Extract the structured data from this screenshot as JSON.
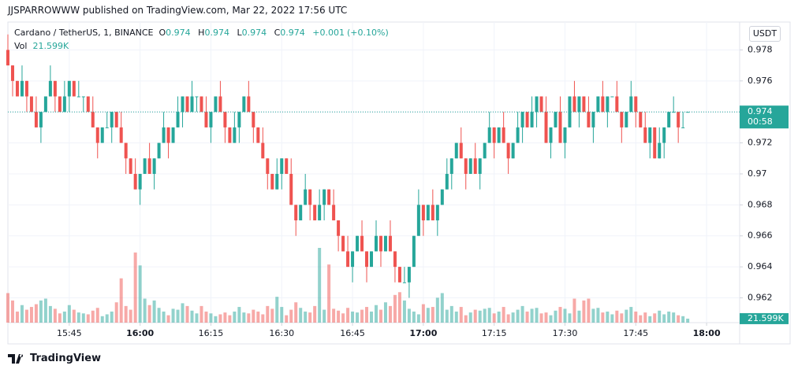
{
  "header": {
    "publisher": "JJSPARROWWW published on TradingView.com, Mar 22, 2022 17:56 UTC"
  },
  "chart_data": {
    "type": "candlestick",
    "symbol": "Cardano / TetherUS, 1, BINANCE",
    "currency": "USDT",
    "ohlc_labels": [
      "O",
      "H",
      "L",
      "C"
    ],
    "change": "+0.001",
    "change_pct": "(+0.10%)",
    "countdown": "00:58",
    "up_color": "#26a69a",
    "down_color": "#ef5350",
    "grid": true,
    "ylim": [
      0.9604,
      0.9798
    ],
    "yticks": [
      0.962,
      0.964,
      0.966,
      0.968,
      0.97,
      0.972,
      0.974,
      0.976,
      0.978
    ],
    "xlim": [
      "15:32",
      "18:07"
    ],
    "xticks": [
      "15:45",
      "16:00",
      "16:15",
      "16:30",
      "16:45",
      "17:00",
      "17:15",
      "17:30",
      "17:45",
      "18:00"
    ],
    "x": [
      "15:32",
      "15:33",
      "15:34",
      "15:35",
      "15:36",
      "15:37",
      "15:38",
      "15:39",
      "15:40",
      "15:41",
      "15:42",
      "15:43",
      "15:44",
      "15:45",
      "15:46",
      "15:47",
      "15:48",
      "15:49",
      "15:50",
      "15:51",
      "15:52",
      "15:53",
      "15:54",
      "15:55",
      "15:56",
      "15:57",
      "15:58",
      "15:59",
      "16:00",
      "16:01",
      "16:02",
      "16:03",
      "16:04",
      "16:05",
      "16:06",
      "16:07",
      "16:08",
      "16:09",
      "16:10",
      "16:11",
      "16:12",
      "16:13",
      "16:14",
      "16:15",
      "16:16",
      "16:17",
      "16:18",
      "16:19",
      "16:20",
      "16:21",
      "16:22",
      "16:23",
      "16:24",
      "16:25",
      "16:26",
      "16:27",
      "16:28",
      "16:29",
      "16:30",
      "16:31",
      "16:32",
      "16:33",
      "16:34",
      "16:35",
      "16:36",
      "16:37",
      "16:38",
      "16:39",
      "16:40",
      "16:41",
      "16:42",
      "16:43",
      "16:44",
      "16:45",
      "16:46",
      "16:47",
      "16:48",
      "16:49",
      "16:50",
      "16:51",
      "16:52",
      "16:53",
      "16:54",
      "16:55",
      "16:56",
      "16:57",
      "16:58",
      "16:59",
      "17:00",
      "17:01",
      "17:02",
      "17:03",
      "17:04",
      "17:05",
      "17:06",
      "17:07",
      "17:08",
      "17:09",
      "17:10",
      "17:11",
      "17:12",
      "17:13",
      "17:14",
      "17:15",
      "17:16",
      "17:17",
      "17:18",
      "17:19",
      "17:20",
      "17:21",
      "17:22",
      "17:23",
      "17:24",
      "17:25",
      "17:26",
      "17:27",
      "17:28",
      "17:29",
      "17:30",
      "17:31",
      "17:32",
      "17:33",
      "17:34",
      "17:35",
      "17:36",
      "17:37",
      "17:38",
      "17:39",
      "17:40",
      "17:41",
      "17:42",
      "17:43",
      "17:44",
      "17:45",
      "17:46",
      "17:47",
      "17:48",
      "17:49",
      "17:50",
      "17:51",
      "17:52",
      "17:53",
      "17:54",
      "17:55",
      "17:56"
    ],
    "open": [
      0.978,
      0.977,
      0.976,
      0.975,
      0.976,
      0.975,
      0.974,
      0.973,
      0.974,
      0.975,
      0.976,
      0.975,
      0.974,
      0.975,
      0.976,
      0.975,
      0.975,
      0.975,
      0.974,
      0.973,
      0.972,
      0.973,
      0.973,
      0.974,
      0.973,
      0.972,
      0.971,
      0.97,
      0.969,
      0.97,
      0.971,
      0.97,
      0.971,
      0.972,
      0.973,
      0.972,
      0.973,
      0.974,
      0.975,
      0.974,
      0.975,
      0.975,
      0.974,
      0.973,
      0.974,
      0.975,
      0.974,
      0.973,
      0.972,
      0.973,
      0.974,
      0.975,
      0.974,
      0.973,
      0.972,
      0.971,
      0.97,
      0.969,
      0.97,
      0.971,
      0.97,
      0.968,
      0.967,
      0.968,
      0.969,
      0.968,
      0.967,
      0.968,
      0.969,
      0.968,
      0.967,
      0.966,
      0.965,
      0.964,
      0.965,
      0.966,
      0.965,
      0.964,
      0.965,
      0.966,
      0.965,
      0.966,
      0.965,
      0.964,
      0.963,
      0.963,
      0.964,
      0.966,
      0.968,
      0.967,
      0.968,
      0.967,
      0.968,
      0.969,
      0.97,
      0.971,
      0.972,
      0.971,
      0.97,
      0.971,
      0.97,
      0.971,
      0.972,
      0.973,
      0.972,
      0.973,
      0.972,
      0.971,
      0.972,
      0.973,
      0.974,
      0.973,
      0.974,
      0.975,
      0.974,
      0.972,
      0.973,
      0.974,
      0.972,
      0.973,
      0.975,
      0.974,
      0.975,
      0.974,
      0.973,
      0.974,
      0.975,
      0.974,
      0.975,
      0.975,
      0.974,
      0.973,
      0.974,
      0.975,
      0.974,
      0.973,
      0.972,
      0.973,
      0.971,
      0.972,
      0.973,
      0.974,
      0.974,
      0.973,
      0.974
    ],
    "high": [
      0.979,
      0.977,
      0.976,
      0.977,
      0.976,
      0.975,
      0.975,
      0.974,
      0.975,
      0.977,
      0.976,
      0.975,
      0.976,
      0.976,
      0.976,
      0.976,
      0.975,
      0.975,
      0.975,
      0.973,
      0.973,
      0.974,
      0.974,
      0.974,
      0.974,
      0.972,
      0.971,
      0.971,
      0.97,
      0.971,
      0.972,
      0.971,
      0.972,
      0.974,
      0.973,
      0.973,
      0.975,
      0.975,
      0.975,
      0.976,
      0.975,
      0.975,
      0.975,
      0.974,
      0.975,
      0.976,
      0.974,
      0.973,
      0.974,
      0.974,
      0.975,
      0.976,
      0.974,
      0.973,
      0.973,
      0.971,
      0.97,
      0.971,
      0.971,
      0.971,
      0.971,
      0.968,
      0.968,
      0.97,
      0.969,
      0.968,
      0.969,
      0.969,
      0.969,
      0.969,
      0.967,
      0.966,
      0.966,
      0.965,
      0.966,
      0.967,
      0.965,
      0.965,
      0.967,
      0.966,
      0.966,
      0.967,
      0.965,
      0.964,
      0.964,
      0.964,
      0.966,
      0.969,
      0.968,
      0.968,
      0.969,
      0.968,
      0.969,
      0.971,
      0.971,
      0.972,
      0.973,
      0.971,
      0.971,
      0.972,
      0.971,
      0.972,
      0.974,
      0.973,
      0.973,
      0.974,
      0.972,
      0.972,
      0.974,
      0.974,
      0.974,
      0.975,
      0.975,
      0.975,
      0.975,
      0.973,
      0.974,
      0.975,
      0.973,
      0.975,
      0.976,
      0.975,
      0.975,
      0.975,
      0.974,
      0.975,
      0.976,
      0.975,
      0.975,
      0.976,
      0.974,
      0.974,
      0.976,
      0.975,
      0.974,
      0.974,
      0.973,
      0.973,
      0.973,
      0.973,
      0.974,
      0.975,
      0.974,
      0.974,
      0.974
    ],
    "low": [
      0.977,
      0.975,
      0.975,
      0.975,
      0.974,
      0.974,
      0.973,
      0.972,
      0.974,
      0.975,
      0.974,
      0.974,
      0.974,
      0.974,
      0.975,
      0.975,
      0.974,
      0.974,
      0.973,
      0.971,
      0.972,
      0.973,
      0.972,
      0.973,
      0.972,
      0.97,
      0.97,
      0.969,
      0.968,
      0.97,
      0.97,
      0.969,
      0.971,
      0.972,
      0.971,
      0.972,
      0.973,
      0.973,
      0.974,
      0.974,
      0.974,
      0.974,
      0.973,
      0.972,
      0.974,
      0.974,
      0.972,
      0.972,
      0.972,
      0.972,
      0.974,
      0.974,
      0.972,
      0.972,
      0.971,
      0.969,
      0.969,
      0.969,
      0.969,
      0.97,
      0.968,
      0.966,
      0.967,
      0.968,
      0.967,
      0.967,
      0.967,
      0.967,
      0.968,
      0.967,
      0.965,
      0.965,
      0.964,
      0.963,
      0.965,
      0.965,
      0.963,
      0.964,
      0.965,
      0.964,
      0.965,
      0.965,
      0.963,
      0.963,
      0.963,
      0.962,
      0.964,
      0.966,
      0.966,
      0.967,
      0.967,
      0.966,
      0.968,
      0.969,
      0.969,
      0.971,
      0.971,
      0.969,
      0.97,
      0.97,
      0.969,
      0.971,
      0.972,
      0.971,
      0.972,
      0.972,
      0.97,
      0.971,
      0.972,
      0.972,
      0.973,
      0.973,
      0.973,
      0.974,
      0.972,
      0.971,
      0.973,
      0.972,
      0.971,
      0.973,
      0.974,
      0.973,
      0.974,
      0.973,
      0.972,
      0.974,
      0.974,
      0.973,
      0.975,
      0.974,
      0.972,
      0.973,
      0.974,
      0.973,
      0.973,
      0.972,
      0.971,
      0.971,
      0.971,
      0.971,
      0.973,
      0.974,
      0.972,
      0.973,
      0.974
    ],
    "close": [
      0.977,
      0.976,
      0.975,
      0.976,
      0.975,
      0.974,
      0.973,
      0.974,
      0.975,
      0.976,
      0.975,
      0.974,
      0.975,
      0.976,
      0.975,
      0.975,
      0.975,
      0.974,
      0.973,
      0.972,
      0.973,
      0.973,
      0.974,
      0.973,
      0.972,
      0.971,
      0.97,
      0.969,
      0.97,
      0.971,
      0.97,
      0.971,
      0.972,
      0.973,
      0.972,
      0.973,
      0.974,
      0.975,
      0.974,
      0.975,
      0.975,
      0.974,
      0.973,
      0.974,
      0.975,
      0.974,
      0.973,
      0.972,
      0.973,
      0.974,
      0.975,
      0.974,
      0.973,
      0.972,
      0.971,
      0.97,
      0.969,
      0.97,
      0.971,
      0.97,
      0.968,
      0.967,
      0.968,
      0.969,
      0.968,
      0.967,
      0.968,
      0.969,
      0.968,
      0.967,
      0.966,
      0.965,
      0.964,
      0.965,
      0.966,
      0.965,
      0.964,
      0.965,
      0.966,
      0.965,
      0.966,
      0.965,
      0.964,
      0.963,
      0.963,
      0.964,
      0.966,
      0.968,
      0.967,
      0.968,
      0.967,
      0.968,
      0.969,
      0.97,
      0.971,
      0.972,
      0.971,
      0.97,
      0.971,
      0.97,
      0.971,
      0.972,
      0.973,
      0.972,
      0.973,
      0.972,
      0.971,
      0.972,
      0.973,
      0.974,
      0.973,
      0.974,
      0.975,
      0.974,
      0.972,
      0.973,
      0.974,
      0.972,
      0.973,
      0.975,
      0.974,
      0.975,
      0.974,
      0.973,
      0.974,
      0.975,
      0.974,
      0.975,
      0.975,
      0.974,
      0.973,
      0.974,
      0.975,
      0.974,
      0.973,
      0.972,
      0.973,
      0.971,
      0.972,
      0.973,
      0.974,
      0.974,
      0.973,
      0.973,
      0.974
    ],
    "volume": {
      "name": "Vol",
      "last_label": "21.599K",
      "values": [
        160000,
        120000,
        60000,
        95000,
        70000,
        85000,
        100000,
        120000,
        130000,
        90000,
        75000,
        50000,
        60000,
        95000,
        70000,
        55000,
        50000,
        45000,
        65000,
        80000,
        35000,
        45000,
        60000,
        110000,
        240000,
        90000,
        70000,
        380000,
        310000,
        130000,
        95000,
        120000,
        80000,
        60000,
        40000,
        75000,
        70000,
        105000,
        90000,
        65000,
        50000,
        90000,
        60000,
        50000,
        35000,
        45000,
        55000,
        40000,
        60000,
        85000,
        55000,
        50000,
        70000,
        60000,
        45000,
        90000,
        75000,
        140000,
        85000,
        40000,
        70000,
        110000,
        80000,
        60000,
        55000,
        90000,
        405000,
        70000,
        315000,
        75000,
        65000,
        50000,
        80000,
        60000,
        55000,
        70000,
        85000,
        60000,
        95000,
        70000,
        110000,
        90000,
        150000,
        165000,
        120000,
        75000,
        60000,
        45000,
        100000,
        80000,
        85000,
        135000,
        160000,
        70000,
        90000,
        60000,
        85000,
        40000,
        55000,
        70000,
        65000,
        75000,
        80000,
        50000,
        60000,
        85000,
        45000,
        55000,
        70000,
        90000,
        60000,
        75000,
        80000,
        50000,
        55000,
        40000,
        65000,
        85000,
        75000,
        50000,
        130000,
        65000,
        120000,
        130000,
        75000,
        80000,
        55000,
        60000,
        45000,
        65000,
        50000,
        70000,
        85000,
        60000,
        40000,
        55000,
        35000,
        50000,
        65000,
        45000,
        60000,
        55000,
        40000,
        35000,
        21599
      ]
    }
  },
  "footer": {
    "brand": "TradingView"
  }
}
